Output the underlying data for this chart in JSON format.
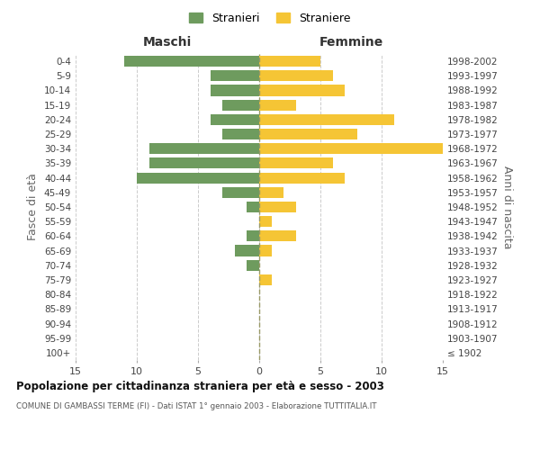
{
  "age_groups": [
    "100+",
    "95-99",
    "90-94",
    "85-89",
    "80-84",
    "75-79",
    "70-74",
    "65-69",
    "60-64",
    "55-59",
    "50-54",
    "45-49",
    "40-44",
    "35-39",
    "30-34",
    "25-29",
    "20-24",
    "15-19",
    "10-14",
    "5-9",
    "0-4"
  ],
  "birth_years": [
    "≤ 1902",
    "1903-1907",
    "1908-1912",
    "1913-1917",
    "1918-1922",
    "1923-1927",
    "1928-1932",
    "1933-1937",
    "1938-1942",
    "1943-1947",
    "1948-1952",
    "1953-1957",
    "1958-1962",
    "1963-1967",
    "1968-1972",
    "1973-1977",
    "1978-1982",
    "1983-1987",
    "1988-1992",
    "1993-1997",
    "1998-2002"
  ],
  "males": [
    0,
    0,
    0,
    0,
    0,
    0,
    1,
    2,
    1,
    0,
    1,
    3,
    10,
    9,
    9,
    3,
    4,
    3,
    4,
    4,
    11
  ],
  "females": [
    0,
    0,
    0,
    0,
    0,
    1,
    0,
    1,
    3,
    1,
    3,
    2,
    7,
    6,
    15,
    8,
    11,
    3,
    7,
    6,
    5
  ],
  "male_color": "#6e9b5e",
  "female_color": "#f5c535",
  "xlim": 15,
  "title": "Popolazione per cittadinanza straniera per età e sesso - 2003",
  "subtitle": "COMUNE DI GAMBASSI TERME (FI) - Dati ISTAT 1° gennaio 2003 - Elaborazione TUTTITALIA.IT",
  "ylabel_left": "Fasce di età",
  "ylabel_right": "Anni di nascita",
  "legend_male": "Stranieri",
  "legend_female": "Straniere",
  "header_left": "Maschi",
  "header_right": "Femmine",
  "bg_color": "#ffffff",
  "grid_color": "#cccccc",
  "bar_height": 0.75,
  "center_line_color": "#999966"
}
